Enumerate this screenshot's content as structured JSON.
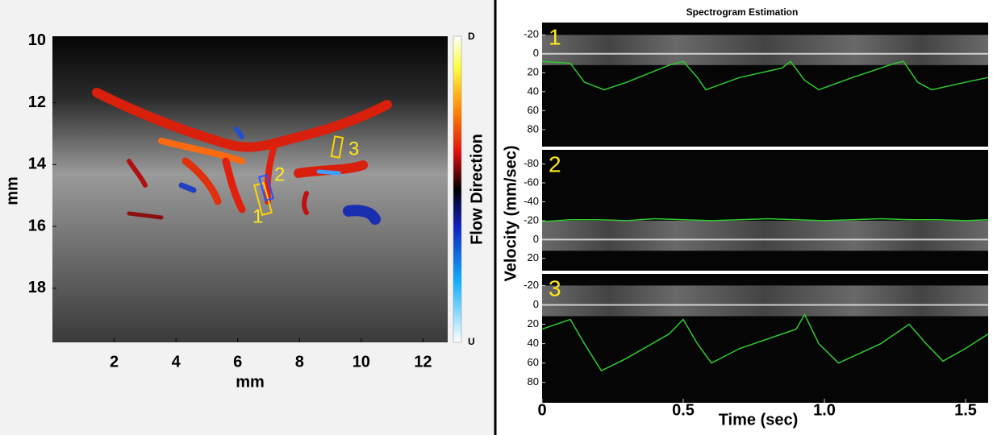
{
  "doppler_image": {
    "xlabel": "mm",
    "ylabel": "mm",
    "xlim": [
      0,
      12.8
    ],
    "ylim": [
      9.85,
      19.75
    ],
    "xticks": [
      2,
      4,
      6,
      8,
      10,
      12
    ],
    "yticks": [
      10,
      12,
      14,
      16,
      18
    ],
    "colorbar": {
      "label": "Flow Direction",
      "top": "D",
      "bottom": "U"
    },
    "roi_labels": [
      "1",
      "2",
      "3"
    ]
  },
  "spectrogram": {
    "title": "Spectrogram Estimation",
    "xlabel": "Time (sec)",
    "ylabel": "Velocity (mm/sec)",
    "xlim": [
      0,
      1.58
    ],
    "xticks": [
      0,
      0.5,
      {
        "value": 1,
        "label": "1.0"
      },
      1.5
    ],
    "panels": [
      {
        "label": "1",
        "ylim": [
          -33,
          98
        ],
        "yticks": [
          -20,
          0,
          20,
          40,
          60,
          80
        ],
        "envelope": {
          "color": "#2ecc2e",
          "t": [
            0,
            0.1,
            0.15,
            0.22,
            0.3,
            0.45,
            0.5,
            0.55,
            0.58,
            0.7,
            0.85,
            0.88,
            0.93,
            0.98,
            1.1,
            1.25,
            1.28,
            1.33,
            1.38,
            1.5,
            1.58
          ],
          "values": [
            8,
            10,
            30,
            38,
            30,
            12,
            8,
            25,
            38,
            25,
            15,
            8,
            28,
            38,
            25,
            10,
            8,
            30,
            38,
            30,
            25
          ]
        }
      },
      {
        "label": "2",
        "ylim": [
          -95,
          33
        ],
        "yticks": [
          -80,
          -60,
          -40,
          -20,
          0,
          20
        ],
        "envelope": {
          "color": "#2ecc2e",
          "t": [
            0,
            0.1,
            0.2,
            0.3,
            0.4,
            0.5,
            0.6,
            0.7,
            0.8,
            0.9,
            1.0,
            1.1,
            1.2,
            1.3,
            1.4,
            1.5,
            1.58
          ],
          "values": [
            -19,
            -21,
            -21,
            -20,
            -22,
            -21,
            -20,
            -21,
            -22,
            -21,
            -20,
            -21,
            -22,
            -21,
            -21,
            -20,
            -21
          ]
        }
      },
      {
        "label": "3",
        "ylim": [
          -32,
          101
        ],
        "yticks": [
          -20,
          0,
          20,
          40,
          60,
          80
        ],
        "envelope": {
          "color": "#2ecc2e",
          "t": [
            0,
            0.1,
            0.15,
            0.21,
            0.3,
            0.45,
            0.5,
            0.55,
            0.6,
            0.7,
            0.9,
            0.93,
            0.98,
            1.05,
            1.2,
            1.3,
            1.36,
            1.42,
            1.5,
            1.58
          ],
          "values": [
            25,
            15,
            40,
            68,
            55,
            30,
            15,
            40,
            60,
            45,
            25,
            10,
            40,
            60,
            40,
            20,
            40,
            58,
            45,
            30
          ]
        }
      }
    ]
  }
}
